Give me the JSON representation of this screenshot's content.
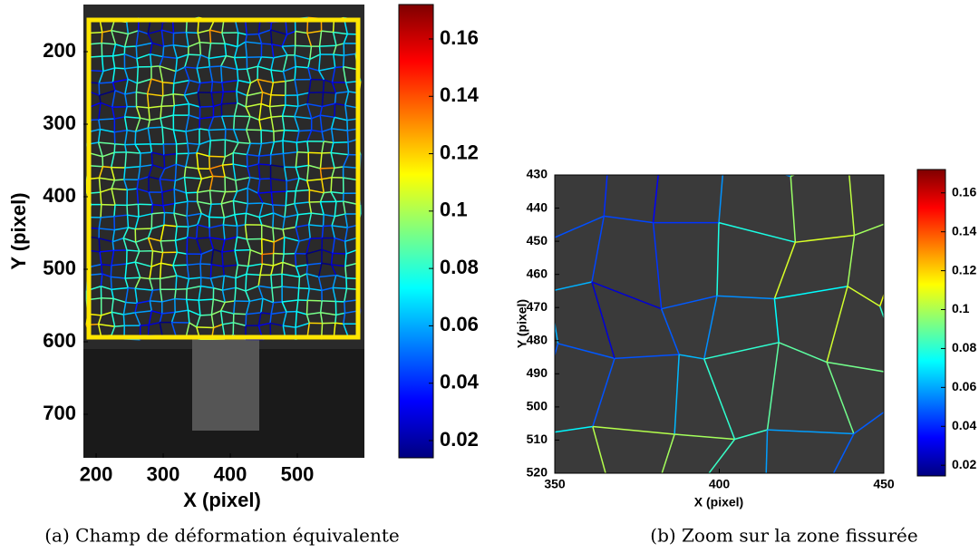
{
  "panels": [
    {
      "x_label": "X (pixel)",
      "y_label": "Y (pixel)",
      "xlim": [
        181,
        600
      ],
      "ylim": [
        135,
        760
      ],
      "xticks": [
        200,
        300,
        400,
        500
      ],
      "yticks": [
        200,
        300,
        400,
        500,
        600,
        700
      ],
      "colorbar": {
        "lim": [
          0.014,
          0.172
        ],
        "ticks": [
          0.02,
          0.04,
          0.06,
          0.08,
          0.1,
          0.12,
          0.14,
          0.16
        ]
      },
      "caption": "(a) Champ de déformation équivalente"
    },
    {
      "x_label": "X (pixel)",
      "y_label": "Y (pixel)",
      "xlim": [
        350,
        450
      ],
      "ylim": [
        430,
        520
      ],
      "xticks": [
        350,
        400,
        450
      ],
      "yticks": [
        430,
        440,
        450,
        460,
        470,
        480,
        490,
        500,
        510,
        520
      ],
      "colorbar": {
        "lim": [
          0.0145,
          0.172
        ],
        "ticks": [
          0.02,
          0.04,
          0.06,
          0.08,
          0.1,
          0.12,
          0.14,
          0.16
        ]
      },
      "caption": "(b) Zoom sur la zone fissurée"
    }
  ]
}
